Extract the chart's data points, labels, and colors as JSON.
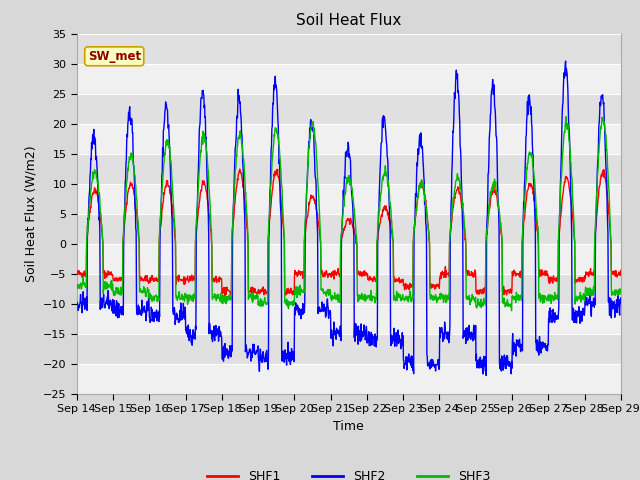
{
  "title": "Soil Heat Flux",
  "ylabel": "Soil Heat Flux (W/m2)",
  "xlabel": "Time",
  "ylim": [
    -25,
    35
  ],
  "yticks": [
    -25,
    -20,
    -15,
    -10,
    -5,
    0,
    5,
    10,
    15,
    20,
    25,
    30,
    35
  ],
  "xtick_labels": [
    "Sep 14",
    "Sep 15",
    "Sep 16",
    "Sep 17",
    "Sep 18",
    "Sep 19",
    "Sep 20",
    "Sep 21",
    "Sep 22",
    "Sep 23",
    "Sep 24",
    "Sep 25",
    "Sep 26",
    "Sep 27",
    "Sep 28",
    "Sep 29"
  ],
  "legend_label": "SW_met",
  "line_colors": {
    "SHF1": "#ff0000",
    "SHF2": "#0000ff",
    "SHF3": "#00bb00"
  },
  "line_width": 1.0,
  "bg_color": "#d8d8d8",
  "plot_bg": "#e8e8e8",
  "grid_color": "#ffffff",
  "title_fontsize": 11,
  "axis_fontsize": 9,
  "tick_fontsize": 8,
  "n_days": 15,
  "n_per_day": 96,
  "day_amplitudes1": [
    9,
    10,
    10,
    10,
    12,
    12,
    8,
    4,
    6,
    10,
    9,
    9,
    10,
    11,
    12
  ],
  "day_amplitudes2": [
    18,
    22,
    23,
    25,
    24,
    27,
    20,
    16,
    21,
    17,
    28,
    26,
    24,
    30,
    25
  ],
  "day_amplitudes3": [
    12,
    15,
    17,
    18,
    18,
    19,
    20,
    11,
    12,
    10,
    11,
    10,
    15,
    20,
    21
  ],
  "night_vals1": [
    -5,
    -6,
    -6,
    -6,
    -8,
    -8,
    -5,
    -5,
    -6,
    -7,
    -5,
    -8,
    -5,
    -6,
    -5
  ],
  "night_vals2": [
    -10,
    -11,
    -12,
    -15,
    -18,
    -19,
    -11,
    -15,
    -16,
    -20,
    -15,
    -20,
    -17,
    -12,
    -10
  ],
  "night_vals3": [
    -7,
    -8,
    -9,
    -9,
    -9,
    -10,
    -8,
    -9,
    -9,
    -9,
    -9,
    -10,
    -9,
    -9,
    -8
  ]
}
